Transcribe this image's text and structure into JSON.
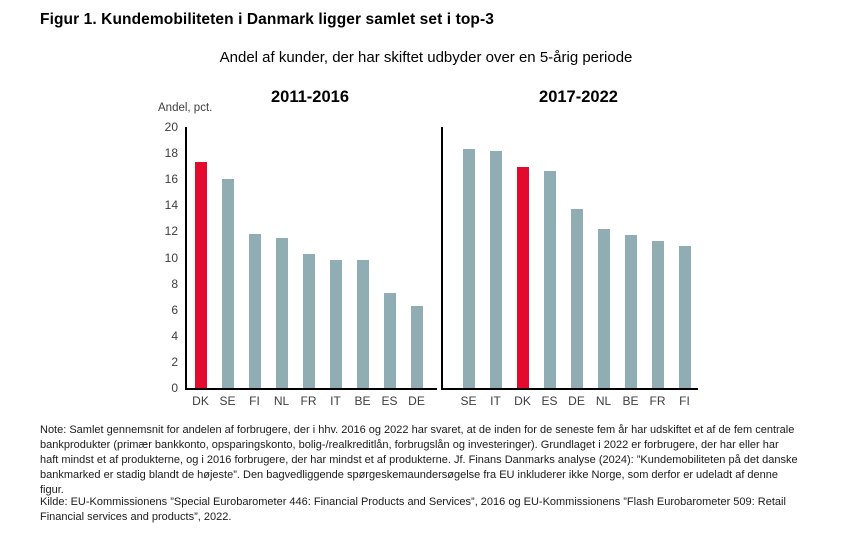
{
  "title": "Figur 1. Kundemobiliteten i Danmark ligger samlet set i top-3",
  "subtitle": "Andel af kunder, der har skiftet udbyder over en 5-årig periode",
  "y_axis": {
    "label": "Andel, pct.",
    "min": 0,
    "max": 20,
    "step": 2
  },
  "colors": {
    "highlight": "#e40a2d",
    "bar": "#8fadb2",
    "axis": "#000000"
  },
  "highlight_category": "DK",
  "chart_data": [
    {
      "type": "bar",
      "title": "2011-2016",
      "categories": [
        "DK",
        "SE",
        "FI",
        "NL",
        "FR",
        "IT",
        "BE",
        "ES",
        "DE"
      ],
      "values": [
        17.3,
        16.0,
        11.8,
        11.5,
        10.3,
        9.8,
        9.8,
        7.3,
        6.3
      ],
      "ylim": [
        0,
        20
      ],
      "grid": false,
      "legend": false
    },
    {
      "type": "bar",
      "title": "2017-2022",
      "categories": [
        "SE",
        "IT",
        "DK",
        "ES",
        "DE",
        "NL",
        "BE",
        "FR",
        "FI"
      ],
      "values": [
        18.3,
        18.2,
        16.9,
        16.6,
        13.7,
        12.2,
        11.7,
        11.3,
        10.9
      ],
      "ylim": [
        0,
        20
      ],
      "grid": false,
      "legend": false
    }
  ],
  "note": "Note: Samlet gennemsnit for andelen af forbrugere, der i hhv. 2016 og 2022 har svaret, at de inden for de seneste fem år har udskiftet et af de fem centrale bankprodukter (primær bankkonto, opsparingskonto, bolig-/realkreditlån, forbrugslån og investeringer). Grundlaget i 2022 er forbrugere, der har eller har haft mindst et af produkterne, og i 2016 forbrugere, der har mindst et af produkterne. Jf. Finans Danmarks analyse (2024): ”Kundemobiliteten på det danske bankmarked er stadig blandt de højeste”. Den bagvedliggende spørgeskemaundersøgelse fra EU inkluderer ikke Norge, som derfor er udeladt af denne figur.",
  "source": "Kilde: EU-Kommissionens ”Special Eurobarometer 446: Financial Products and Services”, 2016 og EU-Kommissionens ”Flash Eurobarometer 509: Retail Financial services and products”, 2022."
}
